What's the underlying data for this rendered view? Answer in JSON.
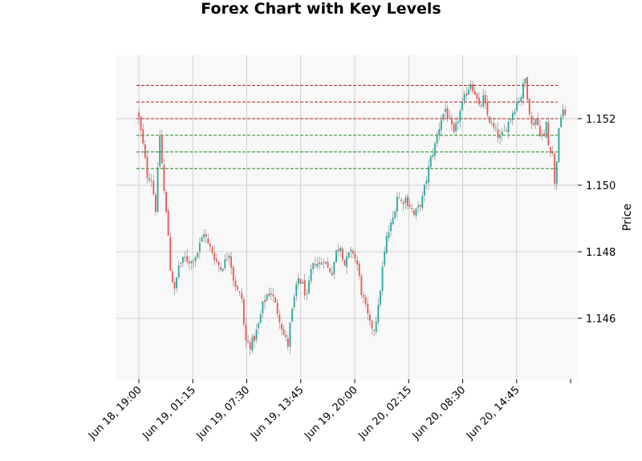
{
  "chart_data": {
    "type": "candlestick",
    "title": "Forex Chart with Key Levels",
    "xlabel": "",
    "ylabel": "Price",
    "y_axis_side": "right",
    "ylim": [
      1.1442,
      1.1537
    ],
    "y_ticks": [
      1.146,
      1.148,
      1.15,
      1.152
    ],
    "y_tick_labels": [
      "1.146",
      "1.148",
      "1.150",
      "1.152"
    ],
    "x_tick_labels": [
      "Jun 18, 19:00",
      "Jun 19, 01:15",
      "Jun 19, 07:30",
      "Jun 19, 13:45",
      "Jun 19, 20:00",
      "Jun 20, 02:15",
      "Jun 20, 08:30",
      "Jun 20, 14:45"
    ],
    "interval": "15min",
    "grid": true,
    "colors": {
      "up": "#26a69a",
      "down": "#ef5350",
      "resistance": "#b22222",
      "support": "#228b22",
      "panel": "#f8f8f8",
      "grid": "#d0d0d0",
      "wick": "#808080"
    },
    "key_levels": {
      "resistance": [
        1.153,
        1.1525,
        1.152
      ],
      "support": [
        1.1515,
        1.151,
        1.1505
      ]
    },
    "close_path": [
      [
        0,
        1.152
      ],
      [
        1,
        1.1516
      ],
      [
        2,
        1.1512
      ],
      [
        4,
        1.1503
      ],
      [
        6,
        1.1502
      ],
      [
        8,
        1.1493
      ],
      [
        10,
        1.1515
      ],
      [
        12,
        1.1498
      ],
      [
        14,
        1.1485
      ],
      [
        15,
        1.1475
      ],
      [
        17,
        1.1468
      ],
      [
        19,
        1.1476
      ],
      [
        22,
        1.1478
      ],
      [
        25,
        1.1477
      ],
      [
        28,
        1.148
      ],
      [
        31,
        1.1486
      ],
      [
        33,
        1.1482
      ],
      [
        35,
        1.148
      ],
      [
        37,
        1.1477
      ],
      [
        39,
        1.1475
      ],
      [
        41,
        1.1477
      ],
      [
        43,
        1.148
      ],
      [
        45,
        1.1472
      ],
      [
        47,
        1.1468
      ],
      [
        49,
        1.1466
      ],
      [
        50,
        1.1458
      ],
      [
        51,
        1.1453
      ],
      [
        53,
        1.1452
      ],
      [
        55,
        1.1454
      ],
      [
        57,
        1.1458
      ],
      [
        59,
        1.1464
      ],
      [
        61,
        1.1467
      ],
      [
        63,
        1.1468
      ],
      [
        65,
        1.1464
      ],
      [
        67,
        1.146
      ],
      [
        69,
        1.1455
      ],
      [
        71,
        1.1452
      ],
      [
        72,
        1.1458
      ],
      [
        74,
        1.1466
      ],
      [
        76,
        1.1472
      ],
      [
        78,
        1.147
      ],
      [
        80,
        1.1466
      ],
      [
        82,
        1.1474
      ],
      [
        84,
        1.1477
      ],
      [
        86,
        1.1476
      ],
      [
        88,
        1.1478
      ],
      [
        90,
        1.1475
      ],
      [
        92,
        1.1474
      ],
      [
        94,
        1.148
      ],
      [
        96,
        1.1482
      ],
      [
        98,
        1.1476
      ],
      [
        100,
        1.1479
      ],
      [
        102,
        1.148
      ],
      [
        104,
        1.1476
      ],
      [
        106,
        1.1468
      ],
      [
        108,
        1.1463
      ],
      [
        110,
        1.1458
      ],
      [
        112,
        1.1457
      ],
      [
        114,
        1.1463
      ],
      [
        116,
        1.1475
      ],
      [
        118,
        1.1484
      ],
      [
        121,
        1.149
      ],
      [
        123,
        1.1497
      ],
      [
        125,
        1.1495
      ],
      [
        127,
        1.1496
      ],
      [
        129,
        1.1494
      ],
      [
        131,
        1.1491
      ],
      [
        133,
        1.1493
      ],
      [
        135,
        1.1496
      ],
      [
        137,
        1.1502
      ],
      [
        139,
        1.1508
      ],
      [
        141,
        1.1512
      ],
      [
        142,
        1.1515
      ],
      [
        144,
        1.152
      ],
      [
        146,
        1.1523
      ],
      [
        148,
        1.1519
      ],
      [
        150,
        1.1515
      ],
      [
        152,
        1.152
      ],
      [
        154,
        1.1524
      ],
      [
        156,
        1.1528
      ],
      [
        158,
        1.1531
      ],
      [
        160,
        1.1528
      ],
      [
        162,
        1.1523
      ],
      [
        164,
        1.1526
      ],
      [
        166,
        1.1521
      ],
      [
        168,
        1.1518
      ],
      [
        170,
        1.1516
      ],
      [
        172,
        1.1514
      ],
      [
        174,
        1.1516
      ],
      [
        176,
        1.1519
      ],
      [
        178,
        1.1522
      ],
      [
        180,
        1.1525
      ],
      [
        182,
        1.1527
      ],
      [
        184,
        1.1532
      ],
      [
        185,
        1.1527
      ],
      [
        187,
        1.1518
      ],
      [
        189,
        1.152
      ],
      [
        191,
        1.1516
      ],
      [
        193,
        1.1514
      ],
      [
        194,
        1.1519
      ],
      [
        195,
        1.1512
      ],
      [
        197,
        1.151
      ],
      [
        198,
        1.15
      ],
      [
        199,
        1.1508
      ],
      [
        200,
        1.1516
      ],
      [
        201,
        1.1521
      ],
      [
        202,
        1.1523
      ],
      [
        203,
        1.152
      ]
    ]
  }
}
